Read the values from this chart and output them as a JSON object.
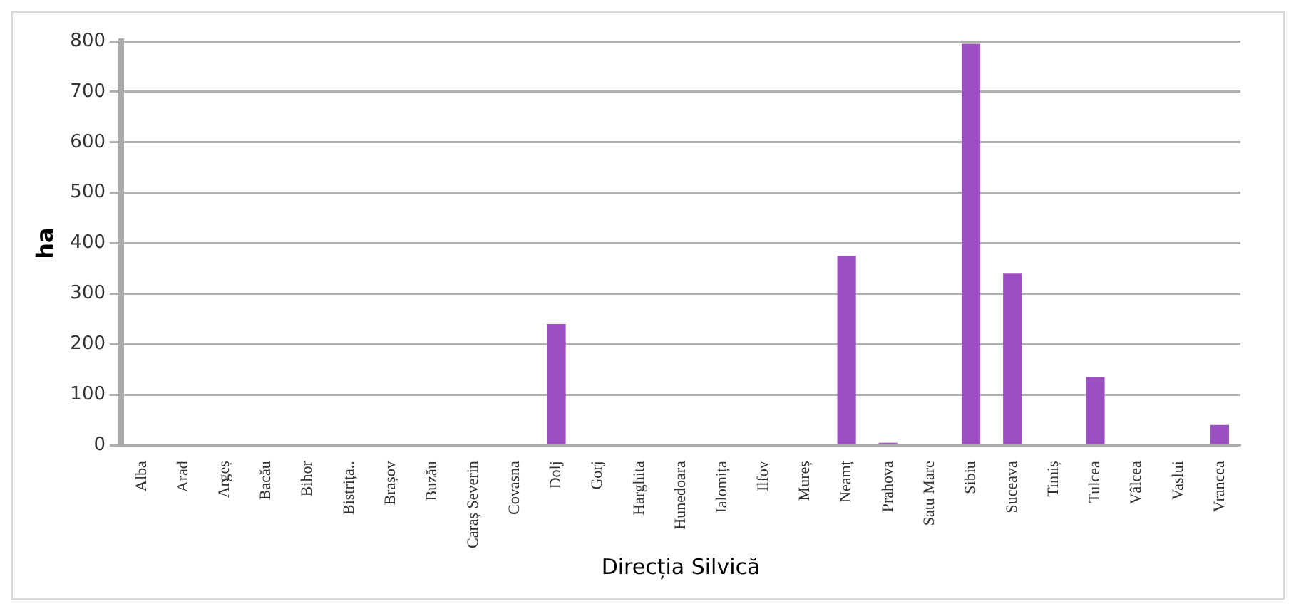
{
  "chart_data": {
    "type": "bar",
    "xlabel": "Direcția Silvică",
    "ylabel": "ha",
    "categories": [
      "Alba",
      "Arad",
      "Argeș",
      "Bacău",
      "Bihor",
      "Bistrița..",
      "Brașov",
      "Buzău",
      "Caraș Severin",
      "Covasna",
      "Dolj",
      "Gorj",
      "Harghita",
      "Hunedoara",
      "Ialomița",
      "Ilfov",
      "Mureș",
      "Neamț",
      "Prahova",
      "Satu Mare",
      "Sibiu",
      "Suceava",
      "Timiș",
      "Tulcea",
      "Vâlcea",
      "Vaslui",
      "Vrancea"
    ],
    "values": [
      0,
      0,
      0,
      0,
      0,
      0,
      0,
      0,
      0,
      0,
      240,
      0,
      0,
      0,
      0,
      0,
      0,
      375,
      5,
      0,
      795,
      340,
      0,
      135,
      0,
      0,
      40
    ],
    "color": "#9b4fc0",
    "ylim": [
      0,
      800
    ],
    "yticks": [
      0,
      100,
      200,
      300,
      400,
      500,
      600,
      700,
      800
    ],
    "grid": "y"
  }
}
